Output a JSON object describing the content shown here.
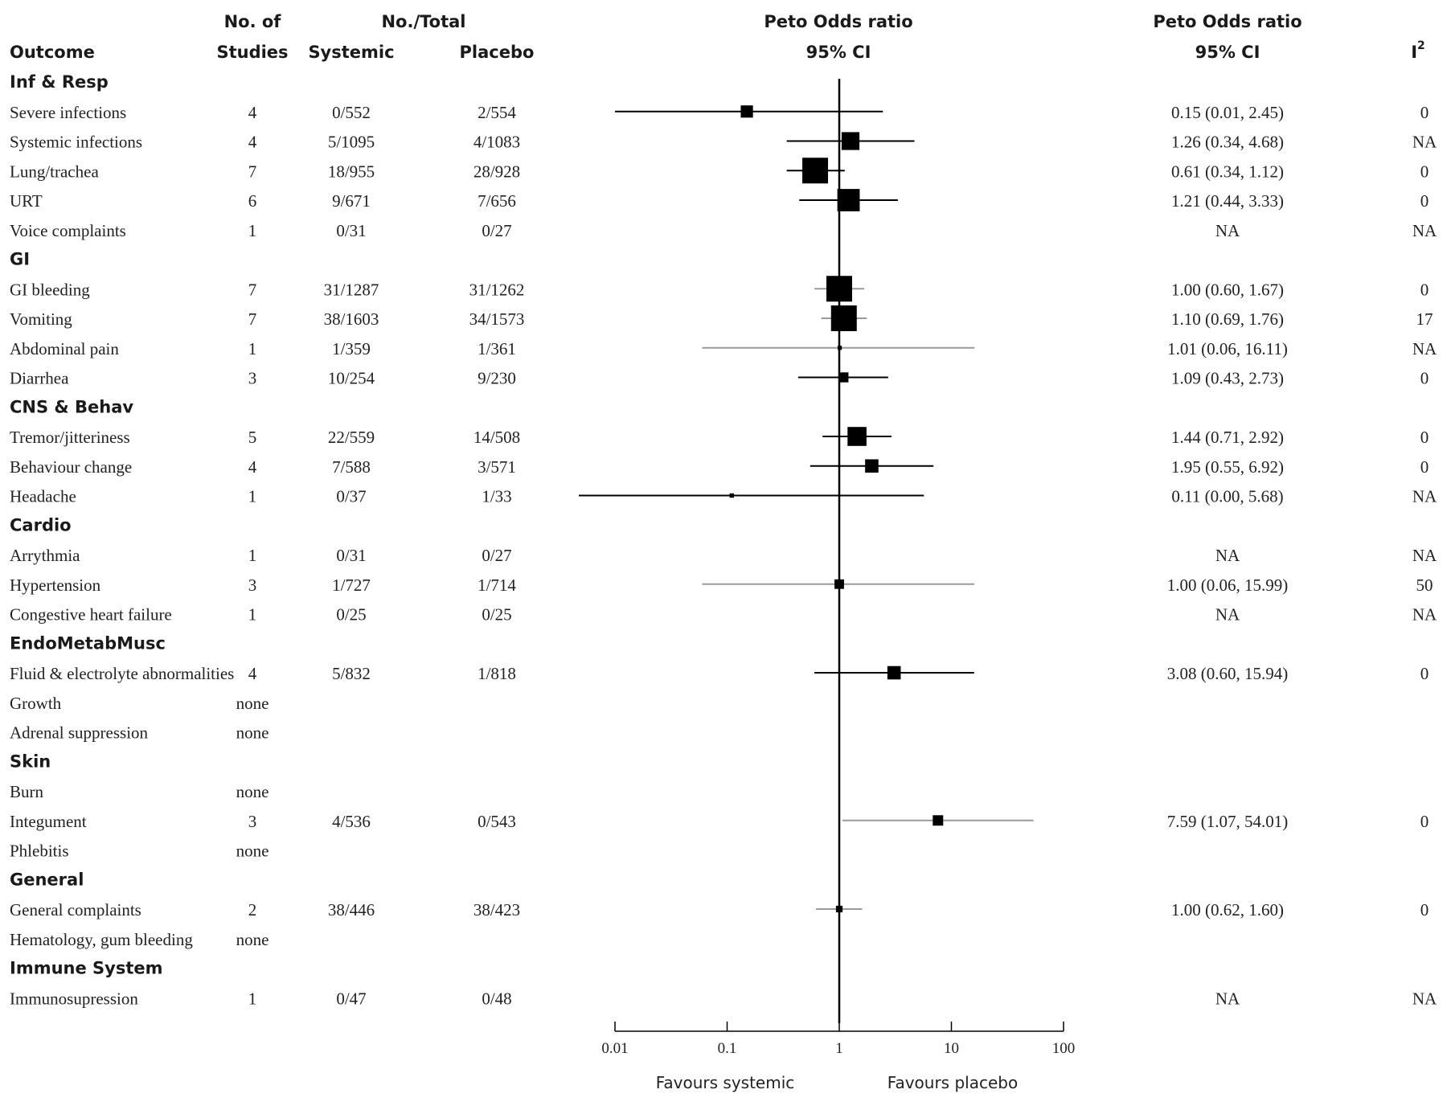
{
  "chart_data": {
    "type": "forest",
    "headers": {
      "outcome": "Outcome",
      "studies_top": "No. of",
      "studies_bottom": "Studies",
      "total_top": "No./Total",
      "systemic": "Systemic",
      "placebo": "Placebo",
      "plot_top": "Peto Odds ratio",
      "plot_bottom": "95% CI",
      "ci_top": "Peto Odds ratio",
      "ci_bottom": "95% CI",
      "i2": "I",
      "i2_sup": "2"
    },
    "x_axis": {
      "scale": "log",
      "range": [
        0.01,
        100
      ],
      "ticks": [
        0.01,
        0.1,
        1,
        10,
        100
      ],
      "tick_labels": [
        "0.01",
        "0.1",
        "1",
        "10",
        "100"
      ],
      "null_line": 1
    },
    "favours_left": "Favours systemic",
    "favours_right": "Favours placebo",
    "rows": [
      {
        "type": "group",
        "label": "Inf & Resp"
      },
      {
        "type": "item",
        "label": "Severe infections",
        "studies": "4",
        "systemic": "0/552",
        "placebo": "2/554",
        "or": 0.15,
        "lo": 0.01,
        "hi": 2.45,
        "weight": 0.4,
        "gray": false,
        "ci_text": "0.15 (0.01, 2.45)",
        "i2": "0"
      },
      {
        "type": "item",
        "label": "Systemic infections",
        "studies": "4",
        "systemic": "5/1095",
        "placebo": "4/1083",
        "or": 1.26,
        "lo": 0.34,
        "hi": 4.68,
        "weight": 0.65,
        "gray": false,
        "ci_text": "1.26 (0.34, 4.68)",
        "i2": "NA"
      },
      {
        "type": "item",
        "label": "Lung/trachea",
        "studies": "7",
        "systemic": "18/955",
        "placebo": "28/928",
        "or": 0.61,
        "lo": 0.34,
        "hi": 1.12,
        "weight": 1.0,
        "gray": false,
        "ci_text": "0.61 (0.34, 1.12)",
        "i2": "0"
      },
      {
        "type": "item",
        "label": "URT",
        "studies": "6",
        "systemic": "9/671",
        "placebo": "7/656",
        "or": 1.21,
        "lo": 0.44,
        "hi": 3.33,
        "weight": 0.85,
        "gray": false,
        "ci_text": "1.21 (0.44, 3.33)",
        "i2": "0"
      },
      {
        "type": "item",
        "label": "Voice complaints",
        "studies": "1",
        "systemic": "0/31",
        "placebo": "0/27",
        "or": null,
        "lo": null,
        "hi": null,
        "weight": 0,
        "gray": false,
        "ci_text": "NA",
        "i2": "NA"
      },
      {
        "type": "group",
        "label": "GI"
      },
      {
        "type": "item",
        "label": "GI bleeding",
        "studies": "7",
        "systemic": "31/1287",
        "placebo": "31/1262",
        "or": 1.0,
        "lo": 0.6,
        "hi": 1.67,
        "weight": 1.0,
        "gray": true,
        "ci_text": "1.00 (0.60, 1.67)",
        "i2": "0"
      },
      {
        "type": "item",
        "label": "Vomiting",
        "studies": "7",
        "systemic": "38/1603",
        "placebo": "34/1573",
        "or": 1.1,
        "lo": 0.69,
        "hi": 1.76,
        "weight": 1.0,
        "gray": true,
        "ci_text": "1.10 (0.69, 1.76)",
        "i2": "17"
      },
      {
        "type": "item",
        "label": "Abdominal pain",
        "studies": "1",
        "systemic": "1/359",
        "placebo": "1/361",
        "or": 1.01,
        "lo": 0.06,
        "hi": 16.11,
        "weight": 0.04,
        "gray": true,
        "ci_text": "1.01 (0.06, 16.11)",
        "i2": "NA"
      },
      {
        "type": "item",
        "label": "Diarrhea",
        "studies": "3",
        "systemic": "10/254",
        "placebo": "9/230",
        "or": 1.09,
        "lo": 0.43,
        "hi": 2.73,
        "weight": 0.3,
        "gray": false,
        "ci_text": "1.09 (0.43, 2.73)",
        "i2": "0"
      },
      {
        "type": "group",
        "label": "CNS & Behav"
      },
      {
        "type": "item",
        "label": "Tremor/jitteriness",
        "studies": "5",
        "systemic": "22/559",
        "placebo": "14/508",
        "or": 1.44,
        "lo": 0.71,
        "hi": 2.92,
        "weight": 0.7,
        "gray": false,
        "ci_text": "1.44 (0.71, 2.92)",
        "i2": "0"
      },
      {
        "type": "item",
        "label": "Behaviour change",
        "studies": "4",
        "systemic": "7/588",
        "placebo": "3/571",
        "or": 1.95,
        "lo": 0.55,
        "hi": 6.92,
        "weight": 0.45,
        "gray": false,
        "ci_text": "1.95 (0.55, 6.92)",
        "i2": "0"
      },
      {
        "type": "item",
        "label": "Headache",
        "studies": "1",
        "systemic": "0/37",
        "placebo": "1/33",
        "or": 0.11,
        "lo": 0.0,
        "hi": 5.68,
        "weight": 0.05,
        "gray": false,
        "ci_text": "0.11 (0.00, 5.68)",
        "i2": "NA"
      },
      {
        "type": "group",
        "label": "Cardio"
      },
      {
        "type": "item",
        "label": "Arrythmia",
        "studies": "1",
        "systemic": "0/31",
        "placebo": "0/27",
        "or": null,
        "lo": null,
        "hi": null,
        "weight": 0,
        "gray": false,
        "ci_text": "NA",
        "i2": "NA"
      },
      {
        "type": "item",
        "label": "Hypertension",
        "studies": "3",
        "systemic": "1/727",
        "placebo": "1/714",
        "or": 1.0,
        "lo": 0.06,
        "hi": 15.99,
        "weight": 0.28,
        "gray": true,
        "ci_text": "1.00 (0.06, 15.99)",
        "i2": "50"
      },
      {
        "type": "item",
        "label": "Congestive heart failure",
        "studies": "1",
        "systemic": "0/25",
        "placebo": "0/25",
        "or": null,
        "lo": null,
        "hi": null,
        "weight": 0,
        "gray": false,
        "ci_text": "NA",
        "i2": "NA"
      },
      {
        "type": "group",
        "label": "EndoMetabMusc"
      },
      {
        "type": "item",
        "label": "Fluid & electrolyte abnormalities",
        "studies": "4",
        "systemic": "5/832",
        "placebo": "1/818",
        "or": 3.08,
        "lo": 0.6,
        "hi": 15.94,
        "weight": 0.45,
        "gray": false,
        "ci_text": "3.08 (0.60, 15.94)",
        "i2": "0"
      },
      {
        "type": "item",
        "label": "Growth",
        "studies": "none",
        "systemic": "",
        "placebo": "",
        "or": null,
        "lo": null,
        "hi": null,
        "weight": 0,
        "gray": false,
        "ci_text": "",
        "i2": ""
      },
      {
        "type": "item",
        "label": "Adrenal suppression",
        "studies": "none",
        "systemic": "",
        "placebo": "",
        "or": null,
        "lo": null,
        "hi": null,
        "weight": 0,
        "gray": false,
        "ci_text": "",
        "i2": ""
      },
      {
        "type": "group",
        "label": "Skin"
      },
      {
        "type": "item",
        "label": "Burn",
        "studies": "none",
        "systemic": "",
        "placebo": "",
        "or": null,
        "lo": null,
        "hi": null,
        "weight": 0,
        "gray": false,
        "ci_text": "",
        "i2": ""
      },
      {
        "type": "item",
        "label": "Integument",
        "studies": "3",
        "systemic": "4/536",
        "placebo": "0/543",
        "or": 7.59,
        "lo": 1.07,
        "hi": 54.01,
        "weight": 0.32,
        "gray": true,
        "ci_text": "7.59 (1.07, 54.01)",
        "i2": "0"
      },
      {
        "type": "item",
        "label": "Phlebitis",
        "studies": "none",
        "systemic": "",
        "placebo": "",
        "or": null,
        "lo": null,
        "hi": null,
        "weight": 0,
        "gray": false,
        "ci_text": "",
        "i2": ""
      },
      {
        "type": "group",
        "label": "General"
      },
      {
        "type": "item",
        "label": "General complaints",
        "studies": "2",
        "systemic": "38/446",
        "placebo": "38/423",
        "or": 1.0,
        "lo": 0.62,
        "hi": 1.6,
        "weight": 0.15,
        "gray": true,
        "ci_text": "1.00 (0.62, 1.60)",
        "i2": "0"
      },
      {
        "type": "item",
        "label": "Hematology, gum bleeding",
        "studies": "none",
        "systemic": "",
        "placebo": "",
        "or": null,
        "lo": null,
        "hi": null,
        "weight": 0,
        "gray": false,
        "ci_text": "",
        "i2": ""
      },
      {
        "type": "group",
        "label": "Immune System"
      },
      {
        "type": "item",
        "label": "Immunosupression",
        "studies": "1",
        "systemic": "0/47",
        "placebo": "0/48",
        "or": null,
        "lo": null,
        "hi": null,
        "weight": 0,
        "gray": false,
        "ci_text": "NA",
        "i2": "NA"
      }
    ]
  }
}
